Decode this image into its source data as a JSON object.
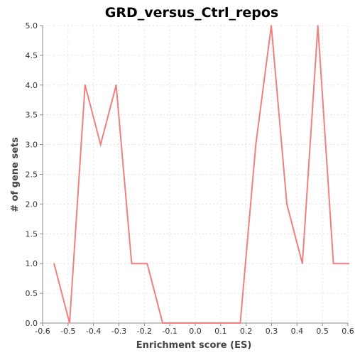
{
  "chart_data": {
    "type": "line",
    "title": "GRD_versus_Ctrl_repos",
    "xlabel": "Enrichment score (ES)",
    "ylabel": "# of gene sets",
    "xlim": [
      -0.6,
      0.6
    ],
    "ylim": [
      0.0,
      5.0
    ],
    "xticks": [
      "-0.6",
      "-0.5",
      "-0.4",
      "-0.3",
      "-0.2",
      "-0.1",
      "0.0",
      "0.1",
      "0.2",
      "0.3",
      "0.4",
      "0.5",
      "0.6"
    ],
    "yticks": [
      "0.0",
      "0.5",
      "1.0",
      "1.5",
      "2.0",
      "2.5",
      "3.0",
      "3.5",
      "4.0",
      "4.5",
      "5.0"
    ],
    "grid": true,
    "series": [
      {
        "color": "#f08080",
        "x": [
          -0.555,
          -0.494,
          -0.433,
          -0.372,
          -0.311,
          -0.25,
          -0.189,
          -0.128,
          -0.067,
          -0.006,
          0.055,
          0.116,
          0.177,
          0.238,
          0.299,
          0.36,
          0.421,
          0.482,
          0.543,
          0.604
        ],
        "y": [
          1,
          0,
          4,
          3,
          4,
          1,
          1,
          0,
          0,
          0,
          0,
          0,
          0,
          3,
          5,
          2,
          1,
          5,
          1,
          1
        ]
      }
    ]
  }
}
